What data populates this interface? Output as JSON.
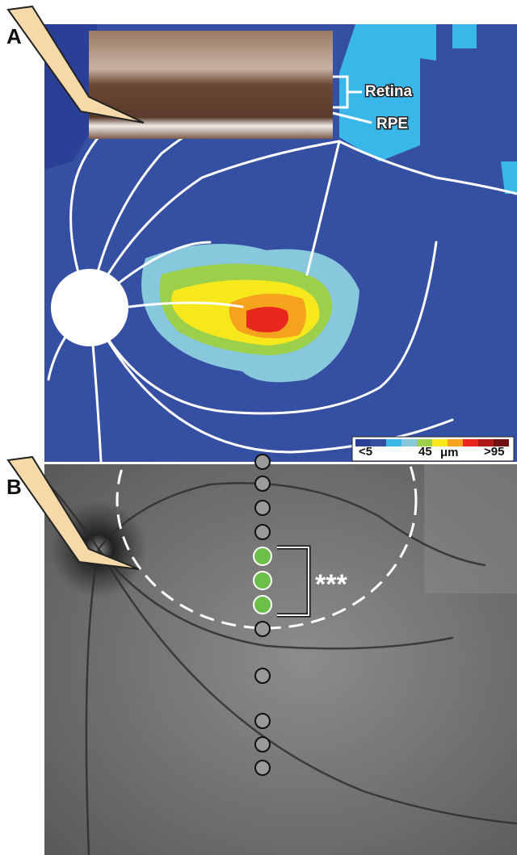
{
  "panel_a": {
    "letter": "A",
    "retina_label": "Retina",
    "rpe_label": "RPE",
    "colorbar": {
      "colors": [
        "#2a3f96",
        "#3550a3",
        "#39b7e8",
        "#88c8dc",
        "#9ccf4a",
        "#f6e81c",
        "#f5a21c",
        "#e8281e",
        "#b01818",
        "#6e1010"
      ],
      "min_label": "<5",
      "mid_label": "45",
      "unit": "μm",
      "max_label": ">95"
    }
  },
  "panel_b": {
    "letter": "B",
    "significance": "***"
  }
}
